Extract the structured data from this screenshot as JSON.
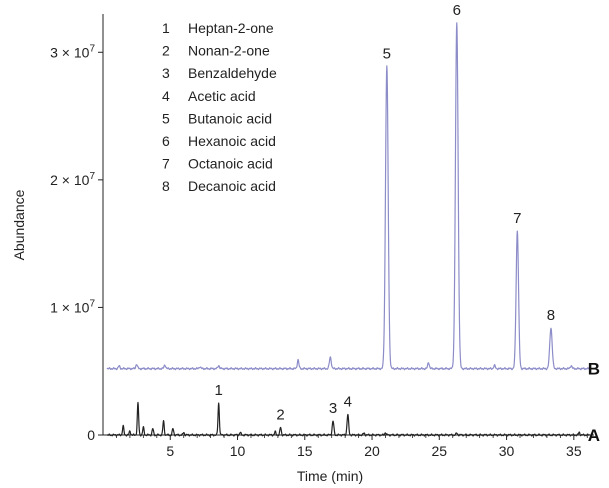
{
  "chart_data": {
    "type": "line",
    "title": "",
    "xlabel": "Time (min)",
    "ylabel": "Abundance",
    "xlim": [
      0,
      36.5
    ],
    "ylim": [
      0,
      33000000
    ],
    "x_ticks": [
      {
        "value": 5,
        "label": "5"
      },
      {
        "value": 10,
        "label": "10"
      },
      {
        "value": 15,
        "label": "15"
      },
      {
        "value": 20,
        "label": "20"
      },
      {
        "value": 25,
        "label": "25"
      },
      {
        "value": 30,
        "label": "30"
      },
      {
        "value": 35,
        "label": "35"
      }
    ],
    "y_ticks": [
      {
        "value": 0,
        "base": "0",
        "exp": ""
      },
      {
        "value": 10000000,
        "base": "1 × 10",
        "exp": "7"
      },
      {
        "value": 20000000,
        "base": "2 × 10",
        "exp": "7"
      },
      {
        "value": 30000000,
        "base": "3 × 10",
        "exp": "7"
      }
    ],
    "grid": false,
    "legend_position": "top-left",
    "legend": [
      {
        "num": "1",
        "name": "Heptan-2-one"
      },
      {
        "num": "2",
        "name": "Nonan-2-one"
      },
      {
        "num": "3",
        "name": "Benzaldehyde"
      },
      {
        "num": "4",
        "name": "Acetic acid"
      },
      {
        "num": "5",
        "name": "Butanoic acid"
      },
      {
        "num": "6",
        "name": "Hexanoic acid"
      },
      {
        "num": "7",
        "name": "Octanoic acid"
      },
      {
        "num": "8",
        "name": "Decanoic acid"
      }
    ],
    "series": [
      {
        "name": "B",
        "color": "#8c8cc8",
        "baseline": 5200000,
        "peaks": [
          {
            "x": 1.2,
            "h": 200000,
            "w": 0.06
          },
          {
            "x": 2.5,
            "h": 350000,
            "w": 0.06
          },
          {
            "x": 4.6,
            "h": 300000,
            "w": 0.06
          },
          {
            "x": 7.2,
            "h": 150000,
            "w": 0.06
          },
          {
            "x": 8.6,
            "h": 250000,
            "w": 0.06
          },
          {
            "x": 14.5,
            "h": 700000,
            "w": 0.06
          },
          {
            "x": 16.9,
            "h": 900000,
            "w": 0.07
          },
          {
            "x": 21.1,
            "h": 23700000,
            "w": 0.1,
            "label": "5"
          },
          {
            "x": 24.2,
            "h": 500000,
            "w": 0.06
          },
          {
            "x": 26.3,
            "h": 27100000,
            "w": 0.1,
            "label": "6"
          },
          {
            "x": 29.1,
            "h": 250000,
            "w": 0.06
          },
          {
            "x": 30.8,
            "h": 10800000,
            "w": 0.09,
            "label": "7"
          },
          {
            "x": 33.3,
            "h": 3200000,
            "w": 0.09,
            "label": "8"
          },
          {
            "x": 34.8,
            "h": 250000,
            "w": 0.06
          }
        ]
      },
      {
        "name": "A",
        "color": "#222222",
        "baseline": 0,
        "peaks": [
          {
            "x": 1.5,
            "h": 700000,
            "w": 0.05
          },
          {
            "x": 2.0,
            "h": 300000,
            "w": 0.05
          },
          {
            "x": 2.6,
            "h": 2500000,
            "w": 0.05
          },
          {
            "x": 3.0,
            "h": 600000,
            "w": 0.05
          },
          {
            "x": 3.7,
            "h": 500000,
            "w": 0.05
          },
          {
            "x": 4.5,
            "h": 1100000,
            "w": 0.05
          },
          {
            "x": 5.2,
            "h": 500000,
            "w": 0.05
          },
          {
            "x": 6.0,
            "h": 200000,
            "w": 0.05
          },
          {
            "x": 8.6,
            "h": 2500000,
            "w": 0.05,
            "label": "1"
          },
          {
            "x": 10.2,
            "h": 200000,
            "w": 0.05
          },
          {
            "x": 12.8,
            "h": 250000,
            "w": 0.05
          },
          {
            "x": 13.2,
            "h": 600000,
            "w": 0.05,
            "label": "2"
          },
          {
            "x": 17.1,
            "h": 1100000,
            "w": 0.06,
            "label": "3"
          },
          {
            "x": 18.2,
            "h": 1600000,
            "w": 0.06,
            "label": "4"
          },
          {
            "x": 19.4,
            "h": 150000,
            "w": 0.05
          },
          {
            "x": 21.0,
            "h": 200000,
            "w": 0.05
          },
          {
            "x": 26.3,
            "h": 150000,
            "w": 0.05
          },
          {
            "x": 35.4,
            "h": 200000,
            "w": 0.05
          }
        ]
      }
    ]
  }
}
